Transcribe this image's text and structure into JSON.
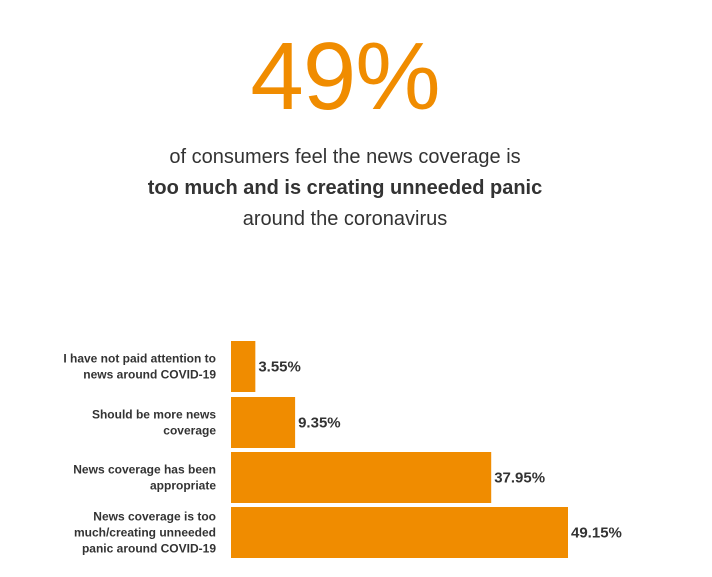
{
  "headline": {
    "stat": "49%",
    "line1": "of consumers feel the news coverage is",
    "line2": "too much and is creating unneeded panic",
    "line3": "around the coronavirus"
  },
  "colors": {
    "accent": "#f08c00",
    "text": "#333333"
  },
  "chart_data": {
    "type": "bar",
    "orientation": "horizontal",
    "categories": [
      [
        "I have not paid attention to",
        "news around COVID-19"
      ],
      [
        "Should be more news",
        "coverage"
      ],
      [
        "News coverage has been",
        "appropriate"
      ],
      [
        "News coverage is too",
        "much/creating unneeded",
        "panic around COVID-19"
      ]
    ],
    "values": [
      3.55,
      9.35,
      37.95,
      49.15
    ],
    "value_labels": [
      "3.55%",
      "9.35%",
      "37.95%",
      "49.15%"
    ],
    "xlim": [
      0,
      50
    ],
    "grid": false,
    "legend": "none"
  }
}
